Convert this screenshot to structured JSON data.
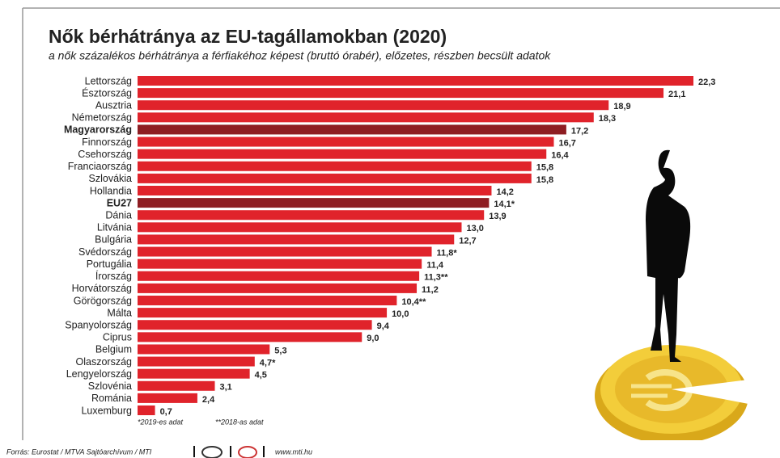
{
  "chart_data": {
    "type": "hbar",
    "title": "Nők bérhátránya az EU-tagállamokban (2020)",
    "subtitle": "a nők százalékos bérhátránya a férfiakéhoz képest (bruttó órabér), előzetes, részben becsült adatok",
    "categories": [
      "Lettország",
      "Észtország",
      "Ausztria",
      "Németország",
      "Magyarország",
      "Finnország",
      "Csehország",
      "Franciaország",
      "Szlovákia",
      "Hollandia",
      "EU27",
      "Dánia",
      "Litvánia",
      "Bulgária",
      "Svédország",
      "Portugália",
      "Írország",
      "Horvátország",
      "Görögország",
      "Málta",
      "Spanyolország",
      "Ciprus",
      "Belgium",
      "Olaszország",
      "Lengyelország",
      "Szlovénia",
      "Románia",
      "Luxemburg"
    ],
    "values": [
      22.3,
      21.1,
      18.9,
      18.3,
      17.2,
      16.7,
      16.4,
      15.8,
      15.8,
      14.2,
      14.1,
      13.9,
      13.0,
      12.7,
      11.8,
      11.4,
      11.3,
      11.2,
      10.4,
      10.0,
      9.4,
      9.0,
      5.3,
      4.7,
      4.5,
      3.1,
      2.4,
      0.7
    ],
    "value_labels": [
      "22,3",
      "21,1",
      "18,9",
      "18,3",
      "17,2",
      "16,7",
      "16,4",
      "15,8",
      "15,8",
      "14,2",
      "14,1*",
      "13,9",
      "13,0",
      "12,7",
      "11,8*",
      "11,4",
      "11,3**",
      "11,2",
      "10,4**",
      "10,0",
      "9,4",
      "9,0",
      "5,3",
      "4,7*",
      "4,5",
      "3,1",
      "2,4",
      "0,7"
    ],
    "color": "#e0232b",
    "colors": [
      "#e0232b",
      "#e0232b",
      "#e0232b",
      "#e0232b",
      "#8e1d22",
      "#e0232b",
      "#e0232b",
      "#e0232b",
      "#e0232b",
      "#e0232b",
      "#8e1d22",
      "#e0232b",
      "#e0232b",
      "#e0232b",
      "#e0232b",
      "#e0232b",
      "#e0232b",
      "#e0232b",
      "#e0232b",
      "#e0232b",
      "#e0232b",
      "#e0232b",
      "#e0232b",
      "#e0232b",
      "#e0232b",
      "#e0232b",
      "#e0232b",
      "#e0232b"
    ],
    "footnotes": [
      "*2019-es adat",
      "**2018-as adat"
    ],
    "source": "Forrás: Eurostat / MTVA Sajtóarchívum / MTI",
    "website": "www.mti.hu"
  }
}
